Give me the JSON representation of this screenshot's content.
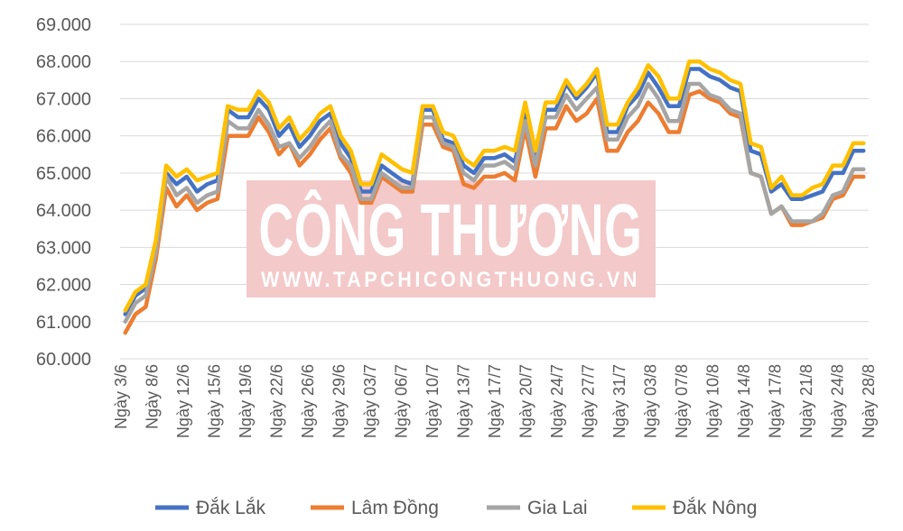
{
  "watermark": {
    "title": "CÔNG THƯƠNG",
    "url": "WWW.TAPCHICONGTHUONG.VN",
    "color": "#f3c9c9"
  },
  "chart_data": {
    "type": "line",
    "ylim": [
      60000,
      69000
    ],
    "yticks": [
      "60.000",
      "61.000",
      "62.000",
      "63.000",
      "64.000",
      "65.000",
      "66.000",
      "67.000",
      "68.000",
      "69.000"
    ],
    "xtick_labels": [
      "Ngày 3/6",
      "Ngày 8/6",
      "Ngày 12/6",
      "Ngày 15/6",
      "Ngày 19/6",
      "Ngày 22/6",
      "Ngày 26/6",
      "Ngày 29/6",
      "Ngày 03/7",
      "Ngày 06/7",
      "Ngày 10/7",
      "Ngày 13/7",
      "Ngày 17/7",
      "Ngày 20/7",
      "Ngày 24/7",
      "Ngày 27/7",
      "Ngày 31/7",
      "Ngày 03/8",
      "Ngày 07/8",
      "Ngày 10/8",
      "Ngày 14/8",
      "Ngày 17/8",
      "Ngày 21/8",
      "Ngày 24/8",
      "Ngày 28/8"
    ],
    "grid": true,
    "legend_position": "bottom",
    "series": [
      {
        "name": "Đắk Lắk",
        "color": "#4472c4",
        "values": [
          61200,
          61700,
          61900,
          63000,
          65000,
          64700,
          64900,
          64500,
          64700,
          64800,
          66700,
          66500,
          66500,
          67000,
          66700,
          66000,
          66300,
          65700,
          66000,
          66400,
          66600,
          65800,
          65400,
          64500,
          64500,
          65200,
          65000,
          64800,
          64700,
          66700,
          66700,
          65900,
          65800,
          65200,
          65000,
          65400,
          65400,
          65500,
          65300,
          66600,
          65400,
          66700,
          66700,
          67400,
          67000,
          67300,
          67700,
          66100,
          66100,
          66800,
          67100,
          67700,
          67300,
          66800,
          66800,
          67800,
          67800,
          67600,
          67500,
          67300,
          67200,
          65600,
          65500,
          64500,
          64700,
          64300,
          64300,
          64400,
          64500,
          65000,
          65000,
          65600,
          65600
        ]
      },
      {
        "name": "Lâm Đồng",
        "color": "#ed7d31",
        "values": [
          60700,
          61200,
          61400,
          62700,
          64600,
          64100,
          64400,
          64000,
          64200,
          64300,
          66000,
          66000,
          66000,
          66500,
          66100,
          65500,
          65800,
          65200,
          65500,
          65900,
          66200,
          65400,
          65000,
          64200,
          64200,
          64900,
          64700,
          64500,
          64500,
          66300,
          66300,
          65700,
          65600,
          64700,
          64600,
          64900,
          64900,
          65000,
          64800,
          66200,
          64900,
          66200,
          66200,
          66800,
          66400,
          66600,
          67000,
          65600,
          65600,
          66100,
          66400,
          66900,
          66600,
          66100,
          66100,
          67100,
          67200,
          67000,
          66900,
          66600,
          66500,
          65000,
          64900,
          63900,
          64100,
          63600,
          63600,
          63700,
          63800,
          64300,
          64400,
          64900,
          64900
        ]
      },
      {
        "name": "Gia Lai",
        "color": "#a5a5a5",
        "values": [
          61000,
          61500,
          61700,
          62900,
          64900,
          64400,
          64600,
          64200,
          64400,
          64500,
          66400,
          66200,
          66200,
          66700,
          66300,
          65700,
          65800,
          65400,
          65700,
          66100,
          66400,
          65500,
          65200,
          64300,
          64300,
          65000,
          64800,
          64600,
          64600,
          66500,
          66500,
          65800,
          65700,
          65000,
          64800,
          65200,
          65200,
          65300,
          65100,
          66400,
          65200,
          66500,
          66500,
          67100,
          66700,
          67000,
          67300,
          65900,
          65900,
          66500,
          66800,
          67400,
          67000,
          66400,
          66400,
          67400,
          67400,
          67100,
          67000,
          66700,
          66600,
          65000,
          64900,
          63900,
          64100,
          63700,
          63700,
          63700,
          63900,
          64400,
          64500,
          65100,
          65100
        ]
      },
      {
        "name": "Đắk Nông",
        "color": "#ffc000",
        "values": [
          61300,
          61800,
          62000,
          63200,
          65200,
          64900,
          65100,
          64800,
          64900,
          65000,
          66800,
          66700,
          66700,
          67200,
          66900,
          66200,
          66500,
          65900,
          66200,
          66600,
          66800,
          66000,
          65600,
          64700,
          64700,
          65500,
          65300,
          65100,
          65000,
          66800,
          66800,
          66100,
          66000,
          65400,
          65200,
          65600,
          65600,
          65700,
          65600,
          66900,
          65600,
          66900,
          66900,
          67500,
          67100,
          67400,
          67800,
          66300,
          66300,
          66900,
          67300,
          67900,
          67600,
          67000,
          67000,
          68000,
          68000,
          67800,
          67700,
          67500,
          67400,
          65800,
          65700,
          64600,
          64900,
          64400,
          64400,
          64600,
          64700,
          65200,
          65200,
          65800,
          65800
        ]
      }
    ]
  }
}
